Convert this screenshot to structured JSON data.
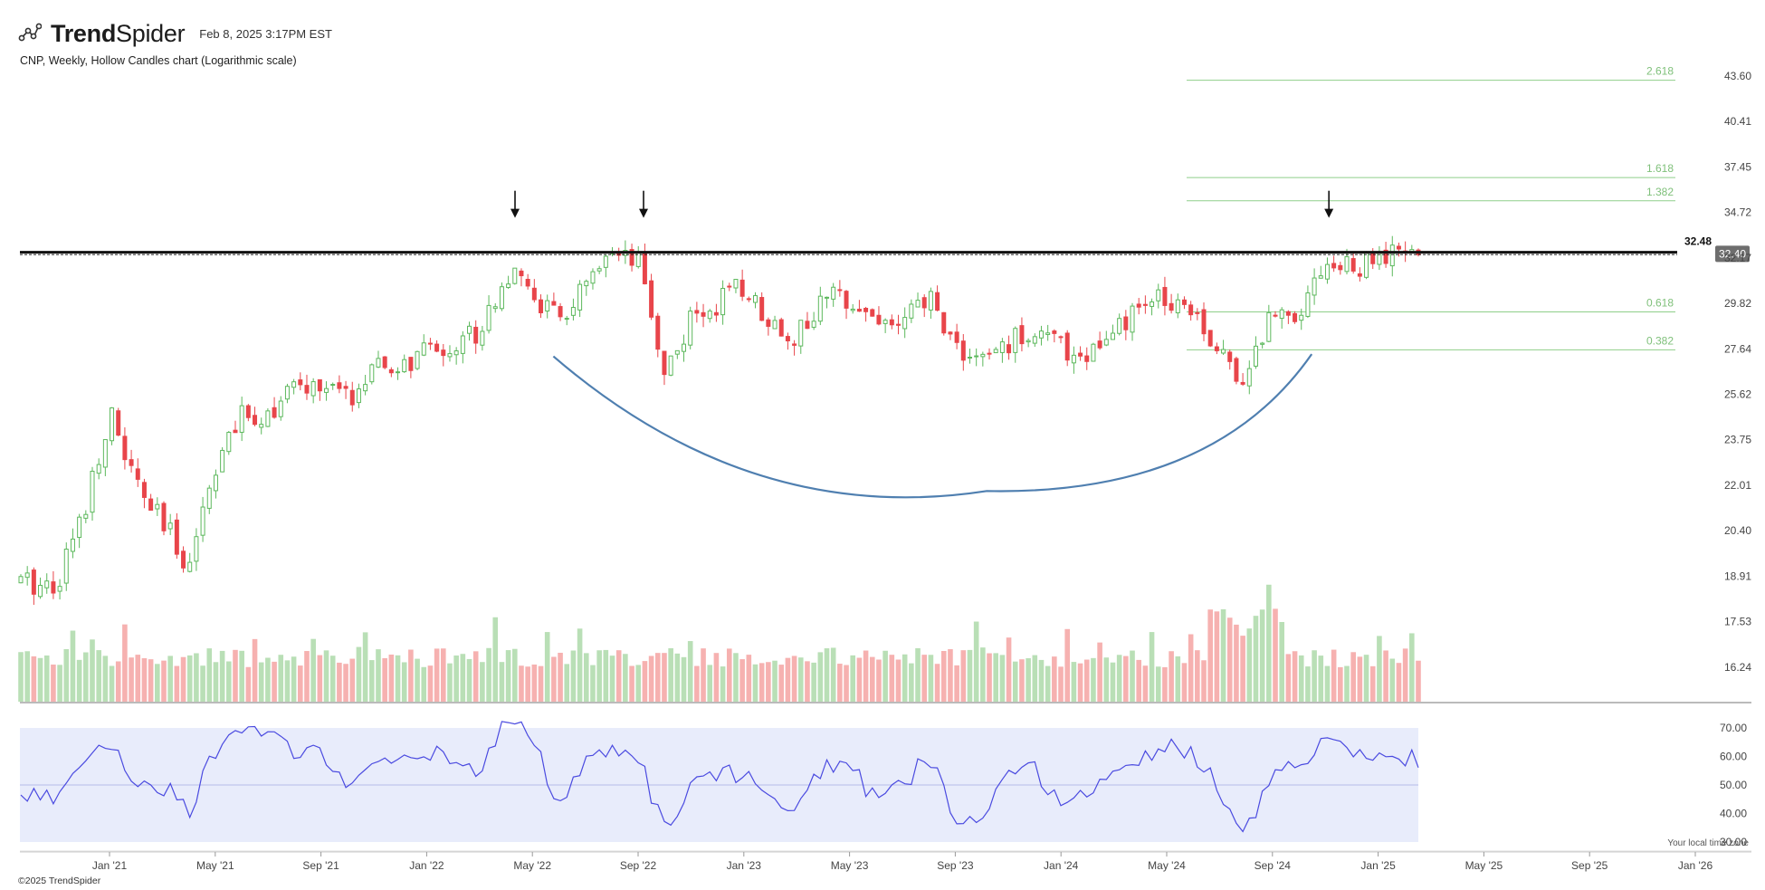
{
  "header": {
    "brand_prefix": "Trend",
    "brand_suffix": "Spider",
    "logo_icon": "trendspider-logo-icon",
    "timestamp": "Feb 8, 2025 3:17PM EST"
  },
  "chart_subtitle": "CNP, Weekly, Hollow Candles chart (Logarithmic scale)",
  "footer": {
    "copyright": "©2025 TrendSpider",
    "timezone_note": "Your local time zone"
  },
  "colors": {
    "up": "#5cb85c",
    "down": "#e8454a",
    "vol_up": "#b9dfb6",
    "vol_down": "#f6b1b0",
    "fib": "#8fcf8a",
    "rsi_line": "#4a4ae0",
    "rsi_band": "#e8ecfb",
    "arc": "#4f7fb0"
  },
  "chart_data": [
    {
      "type": "candlestick",
      "scale": "log",
      "ticker": "CNP",
      "timeframe": "Weekly",
      "x_ticks": [
        "Jan '21",
        "May '21",
        "Sep '21",
        "Jan '22",
        "May '22",
        "Sep '22",
        "Jan '23",
        "May '23",
        "Sep '23",
        "Jan '24",
        "May '24",
        "Sep '24",
        "Jan '25",
        "May '25",
        "Sep '25",
        "Jan '26"
      ],
      "y_ticks": [
        16.24,
        17.53,
        18.91,
        20.4,
        22.01,
        23.75,
        25.62,
        27.64,
        29.82,
        32.17,
        34.72,
        37.45,
        40.41,
        43.6
      ],
      "ylim": [
        15.7,
        45.2
      ],
      "close_path": [
        [
          "Nov '20",
          18.7
        ],
        [
          "Dec '20",
          21.0
        ],
        [
          "Jan '21",
          24.8
        ],
        [
          "Feb '21",
          22.0
        ],
        [
          "Mar '21",
          20.6
        ],
        [
          "Apr '21",
          19.3
        ],
        [
          "May '21",
          22.8
        ],
        [
          "Jun '21",
          24.6
        ],
        [
          "Jul '21",
          24.9
        ],
        [
          "Aug '21",
          25.8
        ],
        [
          "Sep '21",
          26.0
        ],
        [
          "Oct '21",
          25.4
        ],
        [
          "Nov '21",
          26.6
        ],
        [
          "Dec '21",
          26.7
        ],
        [
          "Jan '22",
          27.5
        ],
        [
          "Feb '22",
          27.8
        ],
        [
          "Mar '22",
          28.6
        ],
        [
          "Apr '22",
          31.3
        ],
        [
          "May '22",
          30.3
        ],
        [
          "Jun '22",
          28.9
        ],
        [
          "Jul '22",
          30.6
        ],
        [
          "Aug '22",
          32.0
        ],
        [
          "Sep '22",
          31.8
        ],
        [
          "Oct '22",
          26.6
        ],
        [
          "Nov '22",
          28.9
        ],
        [
          "Dec '22",
          29.9
        ],
        [
          "Jan '23",
          30.6
        ],
        [
          "Feb '23",
          29.0
        ],
        [
          "Mar '23",
          28.2
        ],
        [
          "Apr '23",
          29.9
        ],
        [
          "May '23",
          30.3
        ],
        [
          "Jun '23",
          29.0
        ],
        [
          "Jul '23",
          28.8
        ],
        [
          "Aug '23",
          30.1
        ],
        [
          "Sep '23",
          27.8
        ],
        [
          "Oct '23",
          27.0
        ],
        [
          "Nov '23",
          27.9
        ],
        [
          "Dec '23",
          28.6
        ],
        [
          "Jan '24",
          27.7
        ],
        [
          "Feb '24",
          27.4
        ],
        [
          "Mar '24",
          28.2
        ],
        [
          "Apr '24",
          29.6
        ],
        [
          "May '24",
          30.2
        ],
        [
          "Jun '24",
          29.8
        ],
        [
          "Jul '24",
          27.3
        ],
        [
          "Aug '24",
          26.4
        ],
        [
          "Sep '24",
          29.4
        ],
        [
          "Oct '24",
          29.6
        ],
        [
          "Nov '24",
          32.0
        ],
        [
          "Dec '24",
          31.5
        ],
        [
          "Jan '25",
          32.1
        ],
        [
          "Feb '25",
          32.4
        ]
      ],
      "last_price": "32.40",
      "resistance": {
        "value": 32.48,
        "label": "32.48"
      },
      "fibonacci": [
        {
          "level": "2.618",
          "value": 43.3
        },
        {
          "level": "1.618",
          "value": 36.8
        },
        {
          "level": "1.382",
          "value": 35.4
        },
        {
          "level": "0.618",
          "value": 29.4
        },
        {
          "level": "0.382",
          "value": 27.6
        }
      ],
      "annotations": [
        {
          "type": "down-arrow",
          "at": "Apr '22"
        },
        {
          "type": "down-arrow",
          "at": "Sep '22"
        },
        {
          "type": "down-arrow",
          "at": "Nov '24"
        },
        {
          "type": "rounded-bottom-arc",
          "from": "Jun '22",
          "to": "Nov '24",
          "low": 21.8
        }
      ]
    },
    {
      "type": "bar",
      "name": "volume",
      "colored_by": "candle direction"
    },
    {
      "type": "line",
      "name": "rsi",
      "y_ticks": [
        "70.00",
        "60.00",
        "50.00",
        "40.00",
        "30.00"
      ],
      "ylim": [
        30,
        70
      ],
      "band": [
        30,
        70
      ],
      "midline": 50,
      "path": [
        [
          "Nov '20",
          46
        ],
        [
          "Dec '20",
          60
        ],
        [
          "Jan '21",
          65
        ],
        [
          "Feb '21",
          52
        ],
        [
          "Mar '21",
          50
        ],
        [
          "Apr '21",
          41
        ],
        [
          "May '21",
          62
        ],
        [
          "Jun '21",
          68
        ],
        [
          "Jul '21",
          70
        ],
        [
          "Aug '21",
          60
        ],
        [
          "Sep '21",
          63
        ],
        [
          "Oct '21",
          50
        ],
        [
          "Nov '21",
          56
        ],
        [
          "Dec '21",
          58
        ],
        [
          "Jan '22",
          62
        ],
        [
          "Feb '22",
          59
        ],
        [
          "Mar '22",
          52
        ],
        [
          "Apr '22",
          75
        ],
        [
          "May '22",
          66
        ],
        [
          "Jun '22",
          43
        ],
        [
          "Jul '22",
          57
        ],
        [
          "Aug '22",
          62
        ],
        [
          "Sep '22",
          60
        ],
        [
          "Oct '22",
          34
        ],
        [
          "Nov '22",
          50
        ],
        [
          "Dec '22",
          55
        ],
        [
          "Jan '23",
          53
        ],
        [
          "Feb '23",
          48
        ],
        [
          "Mar '23",
          42
        ],
        [
          "Apr '23",
          55
        ],
        [
          "May '23",
          58
        ],
        [
          "Jun '23",
          44
        ],
        [
          "Jul '23",
          50
        ],
        [
          "Aug '23",
          60
        ],
        [
          "Sep '23",
          40
        ],
        [
          "Oct '23",
          38
        ],
        [
          "Nov '23",
          52
        ],
        [
          "Dec '23",
          55
        ],
        [
          "Jan '24",
          45
        ],
        [
          "Feb '24",
          48
        ],
        [
          "Mar '24",
          52
        ],
        [
          "Apr '24",
          60
        ],
        [
          "May '24",
          64
        ],
        [
          "Jun '24",
          62
        ],
        [
          "Jul '24",
          48
        ],
        [
          "Aug '24",
          33
        ],
        [
          "Sep '24",
          55
        ],
        [
          "Oct '24",
          58
        ],
        [
          "Nov '24",
          66
        ],
        [
          "Dec '24",
          60
        ],
        [
          "Jan '25",
          59
        ],
        [
          "Feb '25",
          59
        ]
      ]
    }
  ]
}
